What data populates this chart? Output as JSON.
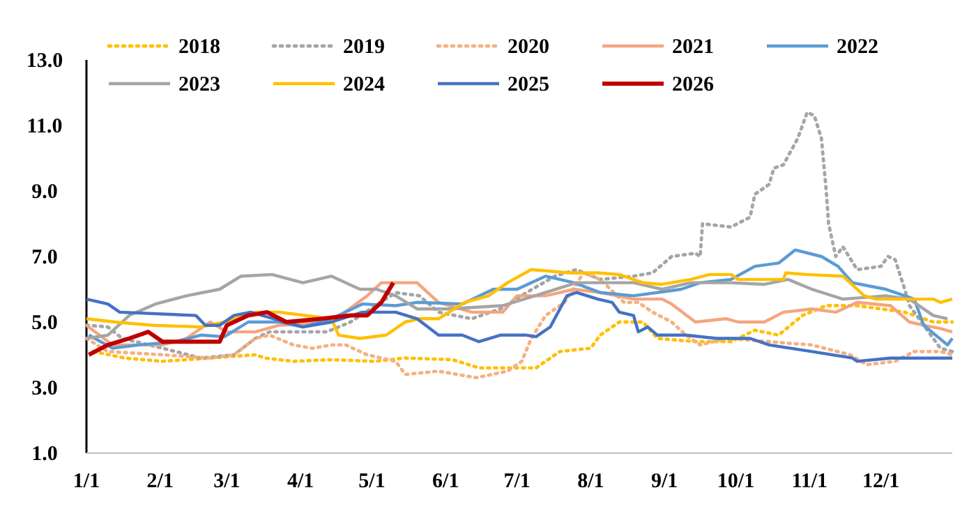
{
  "chart_data": {
    "type": "line",
    "legend": "top",
    "grid": false,
    "xlim": [
      "--01-01",
      "--12-31"
    ],
    "xticks": [
      {
        "value": "--01-01",
        "label": "1/1"
      },
      {
        "value": "--02-01",
        "label": "2/1"
      },
      {
        "value": "--03-01",
        "label": "3/1"
      },
      {
        "value": "--04-01",
        "label": "4/1"
      },
      {
        "value": "--05-01",
        "label": "5/1"
      },
      {
        "value": "--06-01",
        "label": "6/1"
      },
      {
        "value": "--07-01",
        "label": "7/1"
      },
      {
        "value": "--08-01",
        "label": "8/1"
      },
      {
        "value": "--09-01",
        "label": "9/1"
      },
      {
        "value": "--10-01",
        "label": "10/1"
      },
      {
        "value": "--11-01",
        "label": "11/1"
      },
      {
        "value": "--12-01",
        "label": "12/1"
      }
    ],
    "ylim": [
      1,
      13
    ],
    "yticks": [
      {
        "value": 1,
        "label": "1.0"
      },
      {
        "value": 3,
        "label": "3.0"
      },
      {
        "value": 5,
        "label": "5.0"
      },
      {
        "value": 7,
        "label": "7.0"
      },
      {
        "value": 9,
        "label": "9.0"
      },
      {
        "value": 11,
        "label": "11.0"
      },
      {
        "value": 13,
        "label": "13.0"
      }
    ],
    "series": [
      {
        "name": "2018",
        "color": "#ffc000",
        "line_style": "dotted",
        "x": [
          "--01-04",
          "--01-17",
          "--02-02",
          "--02-22",
          "--03-13",
          "--03-17",
          "--03-29",
          "--04-14",
          "--05-02",
          "--05-15",
          "--06-04",
          "--06-15",
          "--07-09",
          "--07-19",
          "--08-01",
          "--08-05",
          "--08-13",
          "--08-23",
          "--08-29",
          "--09-14",
          "--09-29",
          "--10-09",
          "--10-19",
          "--10-29",
          "--11-08",
          "--11-21",
          "--12-11",
          "--12-23",
          "--12-31"
        ],
        "values": [
          4.1,
          3.9,
          3.8,
          3.9,
          4.0,
          3.9,
          3.8,
          3.85,
          3.8,
          3.9,
          3.85,
          3.6,
          3.6,
          4.1,
          4.2,
          4.6,
          5.0,
          5.0,
          4.5,
          4.4,
          4.4,
          4.75,
          4.6,
          5.2,
          5.5,
          5.5,
          5.3,
          5.0,
          5.0
        ]
      },
      {
        "name": "2019",
        "color": "#a5a5a5",
        "line_style": "dotted",
        "x": [
          "--01-01",
          "--01-10",
          "--01-16",
          "--02-02",
          "--02-18",
          "--03-04",
          "--03-13",
          "--03-19",
          "--04-12",
          "--04-22",
          "--05-11",
          "--05-21",
          "--05-29",
          "--06-12",
          "--06-24",
          "--07-05",
          "--07-17",
          "--07-26",
          "--08-05",
          "--08-19",
          "--08-27",
          "--09-04",
          "--09-14",
          "--09-16",
          "--09-17",
          "--09-29",
          "--10-07",
          "--10-09",
          "--10-15",
          "--10-17",
          "--10-21",
          "--10-27",
          "--10-31",
          "--11-03",
          "--11-06",
          "--11-08",
          "--11-09",
          "--11-12",
          "--11-15",
          "--11-21",
          "--12-01",
          "--12-04",
          "--12-07",
          "--12-11",
          "--12-13",
          "--12-26",
          "--12-31"
        ],
        "values": [
          4.9,
          4.85,
          4.5,
          4.2,
          3.9,
          4.0,
          4.5,
          4.7,
          4.7,
          5.0,
          5.9,
          5.8,
          5.3,
          5.1,
          5.4,
          5.9,
          6.4,
          6.6,
          6.3,
          6.4,
          6.5,
          7.0,
          7.1,
          7.0,
          8.0,
          7.9,
          8.2,
          8.9,
          9.2,
          9.7,
          9.8,
          10.6,
          11.4,
          11.3,
          10.6,
          9.0,
          8.0,
          7.0,
          7.3,
          6.6,
          6.7,
          7.0,
          6.9,
          6.0,
          5.5,
          4.2,
          4.1
        ]
      },
      {
        "name": "2020",
        "color": "#f4b183",
        "line_style": "dotted",
        "x": [
          "--01-01",
          "--01-10",
          "--02-02",
          "--02-22",
          "--03-04",
          "--03-13",
          "--03-19",
          "--03-29",
          "--04-06",
          "--04-14",
          "--04-20",
          "--04-29",
          "--05-11",
          "--05-15",
          "--05-29",
          "--06-14",
          "--06-27",
          "--07-03",
          "--07-07",
          "--07-13",
          "--07-21",
          "--07-29",
          "--08-05",
          "--08-15",
          "--08-21",
          "--08-27",
          "--09-04",
          "--09-10",
          "--09-16",
          "--09-27",
          "--10-15",
          "--11-02",
          "--11-18",
          "--11-25",
          "--12-07",
          "--12-15",
          "--12-19",
          "--12-26",
          "--12-31"
        ],
        "values": [
          4.5,
          4.1,
          4.0,
          3.9,
          4.0,
          4.5,
          4.6,
          4.3,
          4.2,
          4.3,
          4.3,
          4.0,
          3.8,
          3.4,
          3.5,
          3.3,
          3.5,
          3.8,
          4.5,
          5.2,
          5.6,
          6.5,
          6.3,
          5.6,
          5.6,
          5.3,
          5.0,
          4.6,
          4.3,
          4.5,
          4.4,
          4.3,
          4.0,
          3.7,
          3.8,
          4.1,
          4.1,
          4.1,
          4.0
        ]
      },
      {
        "name": "2021",
        "color": "#f4a57e",
        "line_style": "solid",
        "x": [
          "--01-01",
          "--01-12",
          "--02-02",
          "--02-12",
          "--02-22",
          "--03-01",
          "--03-13",
          "--03-23",
          "--04-14",
          "--04-29",
          "--05-05",
          "--05-20",
          "--05-29",
          "--06-12",
          "--06-25",
          "--07-01",
          "--07-13",
          "--07-25",
          "--08-05",
          "--08-19",
          "--08-31",
          "--09-04",
          "--09-14",
          "--09-27",
          "--10-02",
          "--10-13",
          "--10-21",
          "--11-02",
          "--11-12",
          "--11-21",
          "--12-05",
          "--12-13",
          "--12-19",
          "--12-26",
          "--12-31"
        ],
        "values": [
          4.9,
          4.3,
          4.3,
          4.5,
          5.0,
          4.7,
          4.7,
          4.9,
          5.0,
          5.8,
          6.2,
          6.2,
          5.6,
          5.3,
          5.3,
          5.8,
          5.8,
          6.0,
          5.9,
          5.7,
          5.7,
          5.55,
          5.0,
          5.1,
          5.0,
          5.0,
          5.3,
          5.4,
          5.3,
          5.6,
          5.5,
          5.0,
          4.9,
          4.8,
          4.7
        ]
      },
      {
        "name": "2022",
        "color": "#5b9bd5",
        "line_style": "solid",
        "x": [
          "--01-02",
          "--01-12",
          "--01-23",
          "--02-08",
          "--02-18",
          "--02-28",
          "--03-10",
          "--03-23",
          "--04-02",
          "--04-14",
          "--04-27",
          "--05-11",
          "--05-20",
          "--06-08",
          "--06-21",
          "--07-01",
          "--07-13",
          "--07-25",
          "--08-05",
          "--08-19",
          "--09-08",
          "--09-16",
          "--09-29",
          "--10-09",
          "--10-19",
          "--10-26",
          "--11-06",
          "--11-13",
          "--11-19",
          "--12-03",
          "--12-07",
          "--12-15",
          "--12-19",
          "--12-29",
          "--12-31"
        ],
        "values": [
          4.6,
          4.2,
          4.3,
          4.4,
          4.6,
          4.55,
          5.0,
          5.0,
          4.85,
          5.1,
          5.55,
          5.5,
          5.6,
          5.55,
          6.0,
          6.0,
          6.4,
          6.2,
          5.9,
          5.8,
          6.0,
          6.2,
          6.3,
          6.7,
          6.8,
          7.2,
          7.0,
          6.7,
          6.2,
          6.0,
          5.9,
          5.7,
          4.9,
          4.3,
          4.5
        ]
      },
      {
        "name": "2023",
        "color": "#a5a5a5",
        "line_style": "solid",
        "x": [
          "--01-01",
          "--01-10",
          "--01-19",
          "--01-30",
          "--02-12",
          "--02-26",
          "--03-07",
          "--03-20",
          "--04-02",
          "--04-14",
          "--04-26",
          "--05-03",
          "--05-11",
          "--05-20",
          "--06-02",
          "--06-25",
          "--07-13",
          "--07-26",
          "--08-19",
          "--08-31",
          "--09-12",
          "--09-29",
          "--10-13",
          "--10-23",
          "--11-02",
          "--11-15",
          "--12-03",
          "--12-13",
          "--12-23",
          "--12-29"
        ],
        "values": [
          4.5,
          4.6,
          5.2,
          5.55,
          5.8,
          6.0,
          6.4,
          6.45,
          6.2,
          6.4,
          6.0,
          6.0,
          5.8,
          5.4,
          5.4,
          5.5,
          5.9,
          6.2,
          6.2,
          6.0,
          6.2,
          6.2,
          6.15,
          6.3,
          6.0,
          5.7,
          5.8,
          5.7,
          5.2,
          5.1
        ]
      },
      {
        "name": "2024",
        "color": "#ffc000",
        "line_style": "solid",
        "x": [
          "--01-01",
          "--01-13",
          "--01-29",
          "--02-18",
          "--02-28",
          "--03-13",
          "--03-23",
          "--04-14",
          "--04-17",
          "--04-26",
          "--05-07",
          "--05-15",
          "--05-21",
          "--05-29",
          "--06-09",
          "--06-19",
          "--06-27",
          "--07-07",
          "--07-23",
          "--08-04",
          "--08-13",
          "--08-23",
          "--08-31",
          "--09-12",
          "--09-20",
          "--09-29",
          "--10-02",
          "--10-21",
          "--10-22",
          "--10-31",
          "--11-15",
          "--11-24",
          "--11-29",
          "--12-23",
          "--12-26",
          "--12-31"
        ],
        "values": [
          5.1,
          5.0,
          4.9,
          4.85,
          5.0,
          5.3,
          5.3,
          5.1,
          4.6,
          4.5,
          4.6,
          5.0,
          5.1,
          5.1,
          5.6,
          5.8,
          6.2,
          6.6,
          6.5,
          6.5,
          6.45,
          6.2,
          6.15,
          6.3,
          6.45,
          6.45,
          6.3,
          6.3,
          6.5,
          6.45,
          6.4,
          5.8,
          5.7,
          5.7,
          5.6,
          5.7
        ]
      },
      {
        "name": "2025",
        "color": "#4472c4",
        "line_style": "solid",
        "x": [
          "--01-01",
          "--01-10",
          "--01-15",
          "--02-16",
          "--02-20",
          "--02-26",
          "--03-04",
          "--03-11",
          "--04-02",
          "--04-14",
          "--04-27",
          "--05-11",
          "--05-20",
          "--05-29",
          "--06-08",
          "--06-15",
          "--06-24",
          "--07-05",
          "--07-09",
          "--07-15",
          "--07-22",
          "--07-26",
          "--08-04",
          "--08-10",
          "--08-13",
          "--08-19",
          "--08-21",
          "--08-25",
          "--08-29",
          "--09-10",
          "--09-23",
          "--10-07",
          "--10-15",
          "--11-02",
          "--11-19",
          "--11-21",
          "--12-05",
          "--12-21",
          "--12-31"
        ],
        "values": [
          5.7,
          5.55,
          5.3,
          5.2,
          4.9,
          4.9,
          5.2,
          5.3,
          4.85,
          5.0,
          5.3,
          5.3,
          5.1,
          4.6,
          4.6,
          4.4,
          4.6,
          4.6,
          4.55,
          4.85,
          5.8,
          5.9,
          5.7,
          5.6,
          5.3,
          5.2,
          4.7,
          4.85,
          4.6,
          4.6,
          4.5,
          4.5,
          4.3,
          4.1,
          3.9,
          3.8,
          3.9,
          3.9,
          3.9
        ]
      },
      {
        "name": "2026",
        "color": "#c00000",
        "line_style": "solid",
        "x": [
          "--01-02",
          "--01-10",
          "--01-19",
          "--01-27",
          "--02-02",
          "--02-26",
          "--03-01",
          "--03-10",
          "--03-18",
          "--03-26",
          "--04-10",
          "--04-22",
          "--04-29",
          "--05-05",
          "--05-10"
        ],
        "values": [
          4.0,
          4.3,
          4.5,
          4.7,
          4.4,
          4.4,
          4.9,
          5.2,
          5.3,
          5.0,
          5.1,
          5.2,
          5.2,
          5.6,
          6.2
        ]
      }
    ]
  }
}
